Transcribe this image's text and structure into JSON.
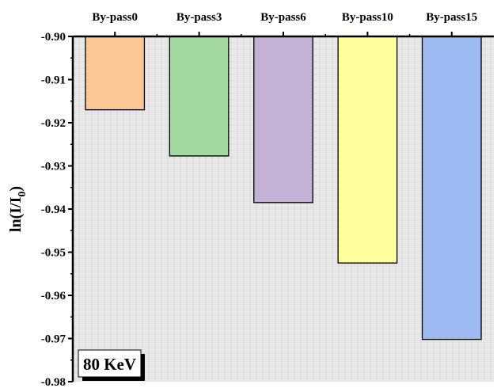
{
  "chart_data": {
    "type": "bar",
    "categories": [
      "By-pass0",
      "By-pass3",
      "By-pass6",
      "By-pass10",
      "By-pass15"
    ],
    "values": [
      -0.917,
      -0.9277,
      -0.9385,
      -0.9525,
      -0.9702
    ],
    "colors": [
      "#FBC794",
      "#A2D9A0",
      "#C4B1D6",
      "#FFFF9E",
      "#9DBAF3"
    ],
    "baseline": -0.9,
    "ylabel": "ln(I/I",
    "ylabel_subscript": "0",
    "ylabel_suffix": ")",
    "ylim": [
      -0.98,
      -0.9
    ],
    "yticks": [
      "-0.90",
      "-0.91",
      "-0.92",
      "-0.93",
      "-0.94",
      "-0.95",
      "-0.96",
      "-0.97",
      "-0.98"
    ],
    "category_axis_position": "top",
    "grid": true,
    "annotation": "80 KeV",
    "annotation_position": "bottom-left",
    "background_color": "#E8E8E8"
  }
}
